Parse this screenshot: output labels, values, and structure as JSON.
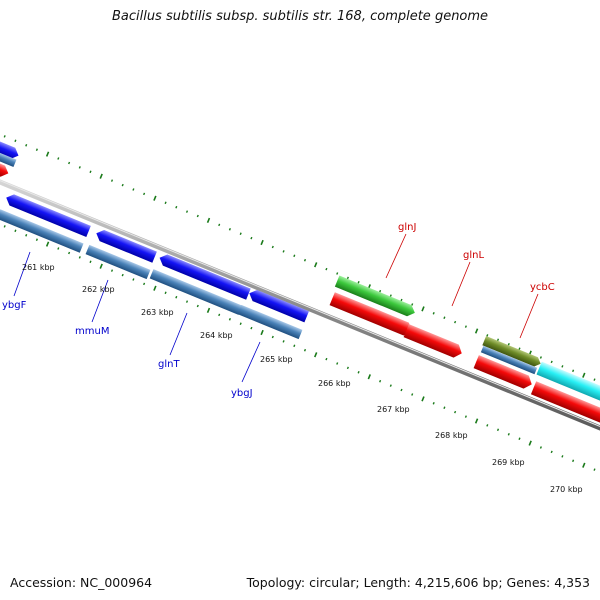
{
  "title": "Bacillus subtilis subsp. subtilis str. 168, complete genome",
  "footer": {
    "accession": "Accession: NC_000964",
    "topology": "Topology: circular; Length: 4,215,606 bp; Genes: 4,353"
  },
  "colors": {
    "backbone": "#8c8c8c",
    "tick": "#1a7a1a",
    "blue_gene": "#0b0bf5",
    "steel_gene": "#4a82b8",
    "red_gene": "#f50a0a",
    "green_gene": "#3cc83c",
    "olive_gene": "#6f8c28",
    "cyan_gene": "#28f0f5",
    "blue_label": "#0000cc",
    "red_label": "#cc0000"
  },
  "kbp_labels": [
    "261 kbp",
    "262 kbp",
    "263 kbp",
    "264 kbp",
    "265 kbp",
    "266 kbp",
    "267 kbp",
    "268 kbp",
    "269 kbp",
    "270 kbp"
  ],
  "gene_labels": [
    {
      "text": "ybgF",
      "color": "blue"
    },
    {
      "text": "mmuM",
      "color": "blue"
    },
    {
      "text": "glnT",
      "color": "blue"
    },
    {
      "text": "ybgJ",
      "color": "blue"
    },
    {
      "text": "glnJ",
      "color": "red"
    },
    {
      "text": "glnL",
      "color": "red"
    },
    {
      "text": "ycbC",
      "color": "red"
    }
  ]
}
